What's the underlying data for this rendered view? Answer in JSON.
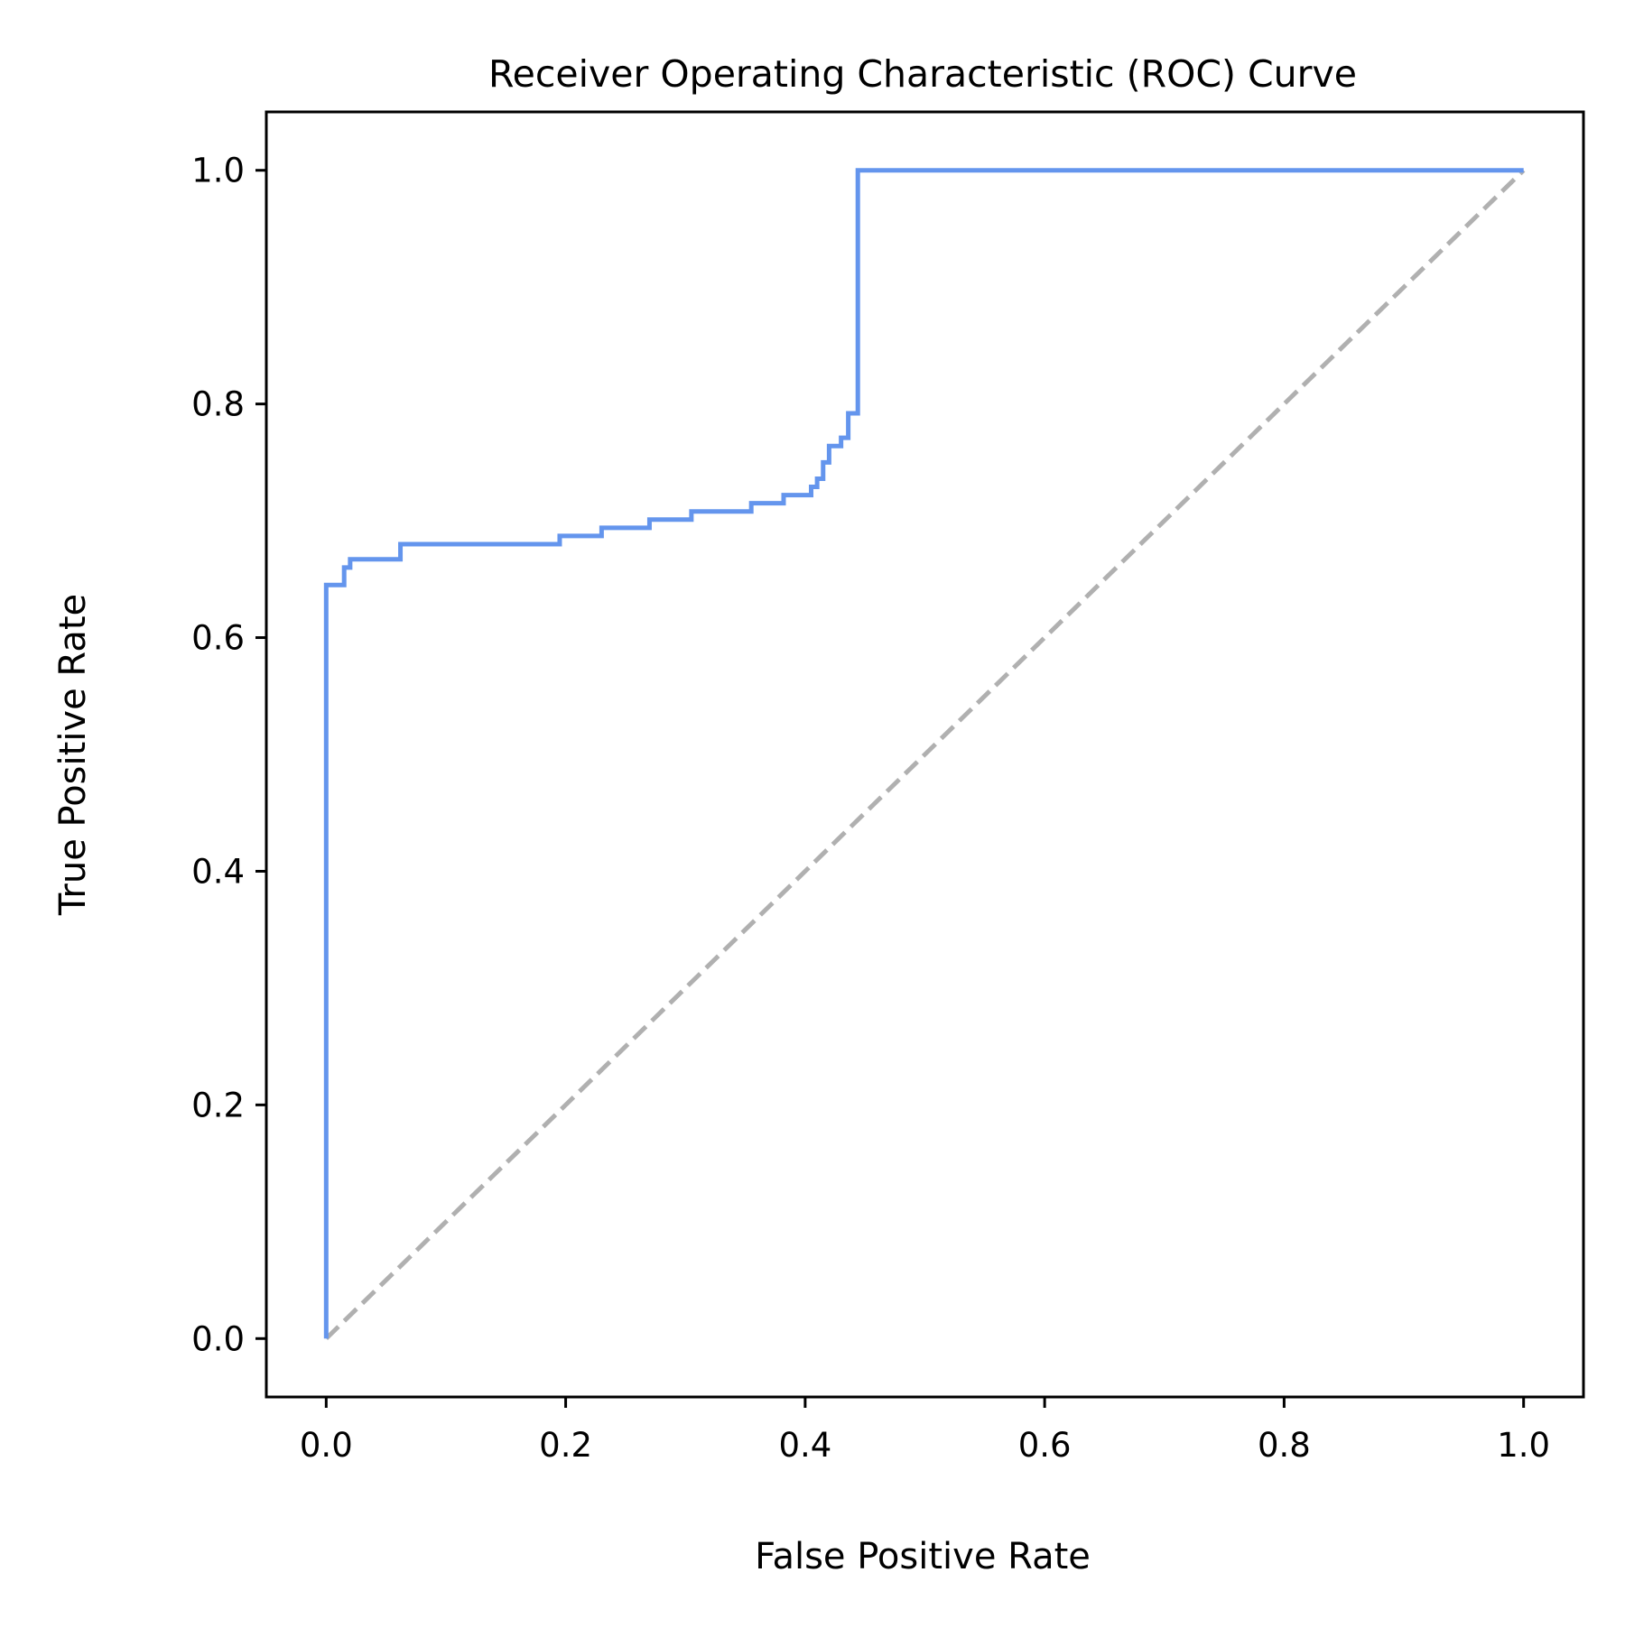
{
  "chart_data": {
    "type": "line",
    "title": "Receiver Operating Characteristic (ROC) Curve",
    "xlabel": "False Positive Rate",
    "ylabel": "True Positive Rate",
    "xlim": [
      -0.05,
      1.05
    ],
    "ylim": [
      -0.05,
      1.05
    ],
    "xticks": [
      0.0,
      0.2,
      0.4,
      0.6,
      0.8,
      1.0
    ],
    "yticks": [
      0.0,
      0.2,
      0.4,
      0.6,
      0.8,
      1.0
    ],
    "xtick_labels": [
      "0.0",
      "0.2",
      "0.4",
      "0.6",
      "0.8",
      "1.0"
    ],
    "ytick_labels": [
      "0.0",
      "0.2",
      "0.4",
      "0.6",
      "0.8",
      "1.0"
    ],
    "grid": false,
    "legend": "none",
    "series": [
      {
        "color": "#6495ed",
        "style": "solid",
        "drawstyle": "steps",
        "x": [
          0.0,
          0.0,
          0.015,
          0.015,
          0.02,
          0.02,
          0.062,
          0.062,
          0.195,
          0.195,
          0.23,
          0.23,
          0.27,
          0.27,
          0.305,
          0.305,
          0.355,
          0.355,
          0.382,
          0.382,
          0.405,
          0.405,
          0.41,
          0.41,
          0.415,
          0.415,
          0.42,
          0.42,
          0.43,
          0.43,
          0.436,
          0.436,
          0.444,
          0.444,
          1.0
        ],
        "y": [
          0.0,
          0.645,
          0.645,
          0.66,
          0.66,
          0.667,
          0.667,
          0.68,
          0.68,
          0.687,
          0.687,
          0.694,
          0.694,
          0.701,
          0.701,
          0.708,
          0.708,
          0.715,
          0.715,
          0.722,
          0.722,
          0.729,
          0.729,
          0.736,
          0.736,
          0.75,
          0.75,
          0.764,
          0.764,
          0.771,
          0.771,
          0.792,
          0.792,
          1.0,
          1.0
        ]
      },
      {
        "color": "#b0b0b0",
        "style": "dashed",
        "x": [
          0.0,
          1.0
        ],
        "y": [
          0.0,
          1.0
        ]
      }
    ]
  }
}
